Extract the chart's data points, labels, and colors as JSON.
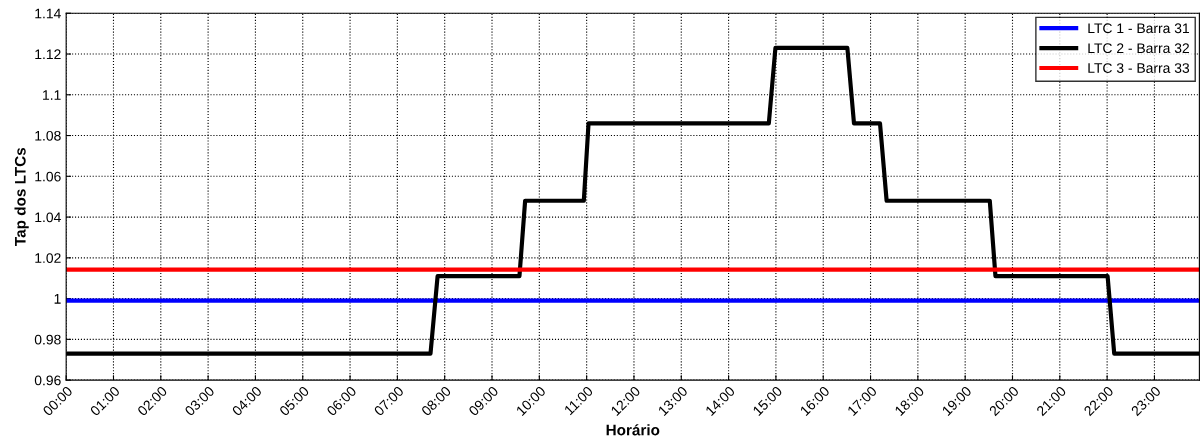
{
  "chart_data": {
    "type": "line",
    "xlabel": "Horário",
    "ylabel": "Tap dos LTCs",
    "xlim": [
      0,
      23.95
    ],
    "ylim": [
      0.96,
      1.14
    ],
    "xticks": [
      {
        "value": 0,
        "label": "00:00"
      },
      {
        "value": 1,
        "label": "01:00"
      },
      {
        "value": 2,
        "label": "02:00"
      },
      {
        "value": 3,
        "label": "03:00"
      },
      {
        "value": 4,
        "label": "04:00"
      },
      {
        "value": 5,
        "label": "05:00"
      },
      {
        "value": 6,
        "label": "06:00"
      },
      {
        "value": 7,
        "label": "07:00"
      },
      {
        "value": 8,
        "label": "08:00"
      },
      {
        "value": 9,
        "label": "09:00"
      },
      {
        "value": 10,
        "label": "10:00"
      },
      {
        "value": 11,
        "label": "11:00"
      },
      {
        "value": 12,
        "label": "12:00"
      },
      {
        "value": 13,
        "label": "13:00"
      },
      {
        "value": 14,
        "label": "14:00"
      },
      {
        "value": 15,
        "label": "15:00"
      },
      {
        "value": 16,
        "label": "16:00"
      },
      {
        "value": 17,
        "label": "17:00"
      },
      {
        "value": 18,
        "label": "18:00"
      },
      {
        "value": 19,
        "label": "19:00"
      },
      {
        "value": 20,
        "label": "20:00"
      },
      {
        "value": 21,
        "label": "21:00"
      },
      {
        "value": 22,
        "label": "22:00"
      },
      {
        "value": 23,
        "label": "23:00"
      }
    ],
    "yticks": [
      0.96,
      0.98,
      {
        "value": 1,
        "label": "1"
      },
      1.02,
      1.04,
      1.06,
      1.08,
      {
        "value": 1.1,
        "label": "1.1"
      },
      1.12,
      1.14
    ],
    "grid": true,
    "legend": "top right",
    "marker": "none",
    "line_style": "solid",
    "series": [
      {
        "name": "LTC 1 - Barra 31",
        "color": "#0000ff",
        "x": [
          0,
          23.95
        ],
        "values": [
          0.999,
          0.999
        ]
      },
      {
        "name": "LTC 2 - Barra 32",
        "color": "#000000",
        "x": [
          0,
          7.7,
          7.85,
          9.58,
          9.7,
          10.94,
          11.04,
          14.85,
          14.99,
          16.51,
          16.65,
          17.2,
          17.34,
          19.52,
          19.64,
          22.01,
          22.15,
          23.95
        ],
        "values": [
          0.973,
          0.973,
          1.011,
          1.011,
          1.048,
          1.048,
          1.086,
          1.086,
          1.123,
          1.123,
          1.086,
          1.086,
          1.048,
          1.048,
          1.011,
          1.011,
          0.973,
          0.973
        ]
      },
      {
        "name": "LTC 3 - Barra 33",
        "color": "#ff0000",
        "x": [
          0,
          23.95
        ],
        "values": [
          1.0142,
          1.0142
        ]
      }
    ]
  }
}
